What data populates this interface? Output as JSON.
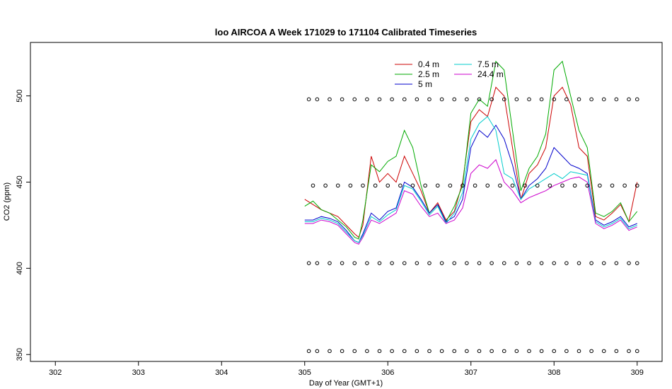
{
  "chart_data": {
    "type": "line",
    "title": "loo AIRCOA A  Week 171029 to 171104  Calibrated Timeseries",
    "xlabel": "Day of Year (GMT+1)",
    "ylabel": "CO2 (ppm)",
    "xlim": [
      301.7,
      309.3
    ],
    "ylim": [
      346,
      531
    ],
    "x_ticks": [
      302,
      303,
      304,
      305,
      306,
      307,
      308,
      309
    ],
    "y_ticks": [
      350,
      400,
      450,
      500
    ],
    "grid": false,
    "legend_position": "top-right",
    "series": [
      {
        "name": "0.4 m",
        "color": "#cc0000",
        "x": [
          305.0,
          305.1,
          305.2,
          305.3,
          305.4,
          305.5,
          305.6,
          305.65,
          305.7,
          305.8,
          305.9,
          306.0,
          306.1,
          306.2,
          306.3,
          306.4,
          306.5,
          306.6,
          306.7,
          306.8,
          306.9,
          307.0,
          307.1,
          307.2,
          307.3,
          307.4,
          307.5,
          307.6,
          307.7,
          307.8,
          307.9,
          308.0,
          308.1,
          308.2,
          308.3,
          308.4,
          308.5,
          308.6,
          308.7,
          308.8,
          308.9,
          309.0
        ],
        "y": [
          440,
          437,
          434,
          432,
          430,
          425,
          420,
          418,
          425,
          465,
          450,
          455,
          450,
          465,
          455,
          445,
          432,
          438,
          428,
          433,
          450,
          485,
          492,
          488,
          505,
          500,
          470,
          440,
          455,
          460,
          470,
          500,
          505,
          495,
          470,
          465,
          430,
          428,
          432,
          437,
          427,
          450
        ]
      },
      {
        "name": "2.5 m",
        "color": "#00aa00",
        "x": [
          305.0,
          305.1,
          305.2,
          305.3,
          305.4,
          305.5,
          305.6,
          305.65,
          305.7,
          305.8,
          305.9,
          306.0,
          306.1,
          306.2,
          306.3,
          306.4,
          306.5,
          306.6,
          306.7,
          306.8,
          306.9,
          307.0,
          307.1,
          307.2,
          307.3,
          307.4,
          307.5,
          307.6,
          307.7,
          307.8,
          307.9,
          308.0,
          308.1,
          308.2,
          308.3,
          308.4,
          308.5,
          308.6,
          308.7,
          308.8,
          308.9,
          309.0
        ],
        "y": [
          436,
          439,
          434,
          432,
          428,
          424,
          418,
          417,
          428,
          460,
          456,
          462,
          465,
          480,
          470,
          448,
          432,
          437,
          427,
          436,
          448,
          490,
          498,
          494,
          520,
          515,
          480,
          445,
          458,
          465,
          478,
          515,
          520,
          500,
          480,
          470,
          432,
          430,
          433,
          438,
          427,
          433
        ]
      },
      {
        "name": "5 m",
        "color": "#0000cc",
        "x": [
          305.0,
          305.1,
          305.2,
          305.3,
          305.4,
          305.5,
          305.6,
          305.65,
          305.7,
          305.8,
          305.9,
          306.0,
          306.1,
          306.2,
          306.3,
          306.4,
          306.5,
          306.6,
          306.7,
          306.8,
          306.9,
          307.0,
          307.1,
          307.2,
          307.3,
          307.4,
          307.5,
          307.6,
          307.7,
          307.8,
          307.9,
          308.0,
          308.1,
          308.2,
          308.3,
          308.4,
          308.5,
          308.6,
          308.7,
          308.8,
          308.9,
          309.0
        ],
        "y": [
          428,
          428,
          430,
          429,
          427,
          422,
          416,
          415,
          420,
          432,
          428,
          433,
          435,
          450,
          447,
          440,
          432,
          437,
          427,
          430,
          440,
          470,
          480,
          476,
          483,
          475,
          460,
          440,
          448,
          452,
          458,
          470,
          465,
          460,
          458,
          455,
          428,
          425,
          427,
          430,
          424,
          426
        ]
      },
      {
        "name": "7.5 m",
        "color": "#00cccc",
        "x": [
          305.0,
          305.1,
          305.2,
          305.3,
          305.4,
          305.5,
          305.6,
          305.65,
          305.7,
          305.8,
          305.9,
          306.0,
          306.1,
          306.2,
          306.3,
          306.4,
          306.5,
          306.6,
          306.7,
          306.8,
          306.9,
          307.0,
          307.1,
          307.2,
          307.3,
          307.4,
          307.5,
          307.6,
          307.7,
          307.8,
          307.9,
          308.0,
          308.1,
          308.2,
          308.3,
          308.4,
          308.5,
          308.6,
          308.7,
          308.8,
          308.9,
          309.0
        ],
        "y": [
          427,
          427,
          429,
          428,
          426,
          421,
          416,
          415,
          419,
          430,
          427,
          431,
          434,
          448,
          446,
          439,
          431,
          436,
          426,
          432,
          444,
          475,
          484,
          488,
          480,
          455,
          452,
          440,
          446,
          449,
          452,
          455,
          452,
          456,
          455,
          454,
          427,
          424,
          426,
          429,
          423,
          425
        ]
      },
      {
        "name": "24.4 m",
        "color": "#cc00cc",
        "x": [
          305.0,
          305.1,
          305.2,
          305.3,
          305.4,
          305.5,
          305.6,
          305.65,
          305.7,
          305.8,
          305.9,
          306.0,
          306.1,
          306.2,
          306.3,
          306.4,
          306.5,
          306.6,
          306.7,
          306.8,
          306.9,
          307.0,
          307.1,
          307.2,
          307.3,
          307.4,
          307.5,
          307.6,
          307.7,
          307.8,
          307.9,
          308.0,
          308.1,
          308.2,
          308.3,
          308.4,
          308.5,
          308.6,
          308.7,
          308.8,
          308.9,
          309.0
        ],
        "y": [
          426,
          426,
          428,
          427,
          425,
          420,
          415,
          414,
          418,
          428,
          426,
          429,
          432,
          445,
          443,
          436,
          430,
          432,
          426,
          428,
          435,
          455,
          460,
          458,
          463,
          450,
          445,
          438,
          441,
          443,
          445,
          448,
          450,
          452,
          453,
          450,
          426,
          423,
          425,
          428,
          422,
          424
        ]
      },
      {
        "name": "",
        "color": "#000000",
        "type": "scatter",
        "marker": "circle-open",
        "x": [
          305.05,
          305.15,
          305.3,
          305.45,
          305.6,
          305.75,
          305.9,
          306.05,
          306.2,
          306.35,
          306.5,
          306.65,
          306.8,
          306.95,
          307.1,
          307.25,
          307.4,
          307.55,
          307.7,
          307.85,
          308.0,
          308.15,
          308.3,
          308.45,
          308.6,
          308.75,
          308.9,
          309.0
        ],
        "y": [
          498,
          498,
          498,
          498,
          498,
          498,
          498,
          498,
          498,
          498,
          498,
          498,
          498,
          498,
          498,
          498,
          498,
          498,
          498,
          498,
          498,
          498,
          498,
          498,
          498,
          498,
          498,
          498
        ]
      },
      {
        "name": "",
        "color": "#000000",
        "type": "scatter",
        "marker": "circle-open",
        "x": [
          305.1,
          305.25,
          305.4,
          305.55,
          305.7,
          305.85,
          306.0,
          306.15,
          306.3,
          306.45,
          306.6,
          306.75,
          306.9,
          307.05,
          307.2,
          307.35,
          307.5,
          307.65,
          307.8,
          307.95,
          308.1,
          308.25,
          308.4,
          308.55,
          308.7,
          308.85,
          309.0
        ],
        "y": [
          448,
          448,
          448,
          448,
          448,
          448,
          448,
          448,
          448,
          448,
          448,
          448,
          448,
          448,
          448,
          448,
          448,
          448,
          448,
          448,
          448,
          448,
          448,
          448,
          448,
          448,
          448
        ]
      },
      {
        "name": "",
        "color": "#000000",
        "type": "scatter",
        "marker": "circle-open",
        "x": [
          305.05,
          305.15,
          305.3,
          305.45,
          305.6,
          305.75,
          305.9,
          306.05,
          306.2,
          306.35,
          306.5,
          306.65,
          306.8,
          306.95,
          307.1,
          307.25,
          307.4,
          307.55,
          307.7,
          307.85,
          308.0,
          308.15,
          308.3,
          308.45,
          308.6,
          308.75,
          308.9,
          309.0
        ],
        "y": [
          403,
          403,
          403,
          403,
          403,
          403,
          403,
          403,
          403,
          403,
          403,
          403,
          403,
          403,
          403,
          403,
          403,
          403,
          403,
          403,
          403,
          403,
          403,
          403,
          403,
          403,
          403,
          403
        ]
      },
      {
        "name": "",
        "color": "#000000",
        "type": "scatter",
        "marker": "circle-open",
        "x": [
          305.05,
          305.15,
          305.3,
          305.45,
          305.6,
          305.75,
          305.9,
          306.05,
          306.2,
          306.35,
          306.5,
          306.65,
          306.8,
          306.95,
          307.1,
          307.25,
          307.4,
          307.55,
          307.7,
          307.85,
          308.0,
          308.15,
          308.3,
          308.45,
          308.6,
          308.75,
          308.9,
          309.0
        ],
        "y": [
          352,
          352,
          352,
          352,
          352,
          352,
          352,
          352,
          352,
          352,
          352,
          352,
          352,
          352,
          352,
          352,
          352,
          352,
          352,
          352,
          352,
          352,
          352,
          352,
          352,
          352,
          352,
          352
        ]
      }
    ]
  }
}
